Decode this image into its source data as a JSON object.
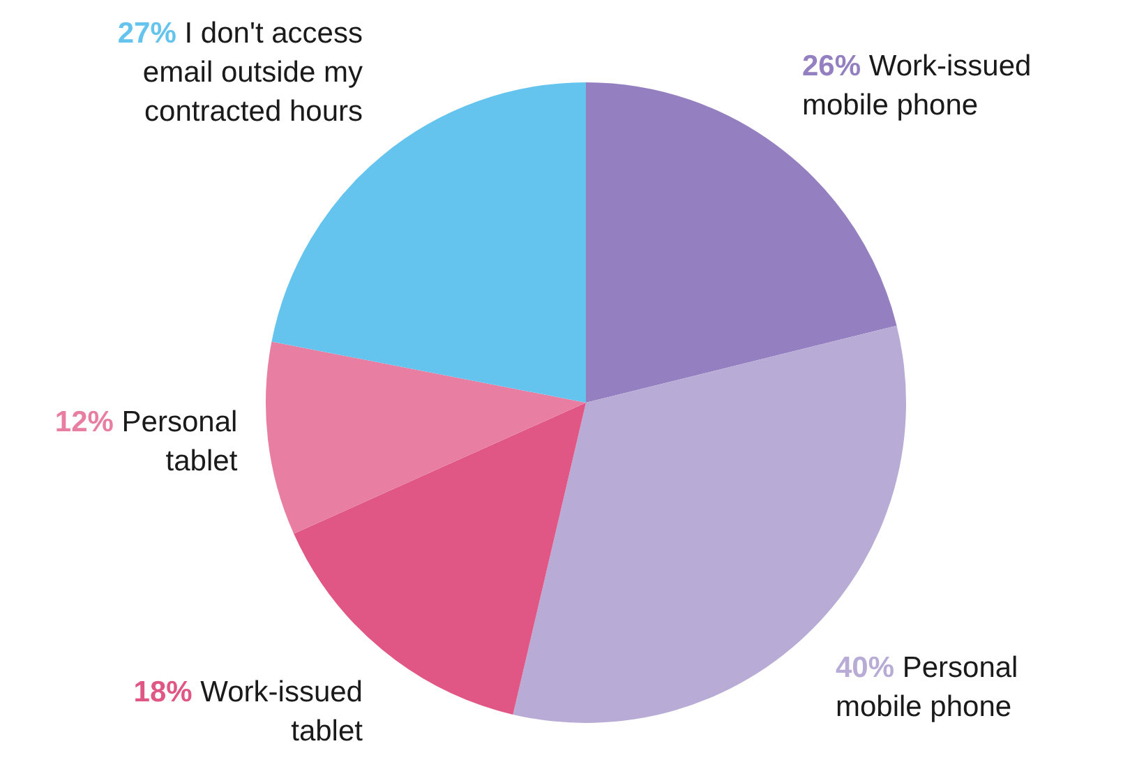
{
  "chart_data": {
    "type": "pie",
    "categories": [
      "Work-issued mobile phone",
      "Personal mobile phone",
      "Work-issued tablet",
      "Personal tablet",
      "I don't access email outside my contracted hours"
    ],
    "values": [
      26,
      40,
      18,
      12,
      27
    ],
    "colors": [
      "#9480c0",
      "#b8acd6",
      "#e05685",
      "#e87ea2",
      "#64c4ee"
    ],
    "value_labels": [
      "26%",
      "40%",
      "18%",
      "12%",
      "27%"
    ],
    "legend": false
  }
}
